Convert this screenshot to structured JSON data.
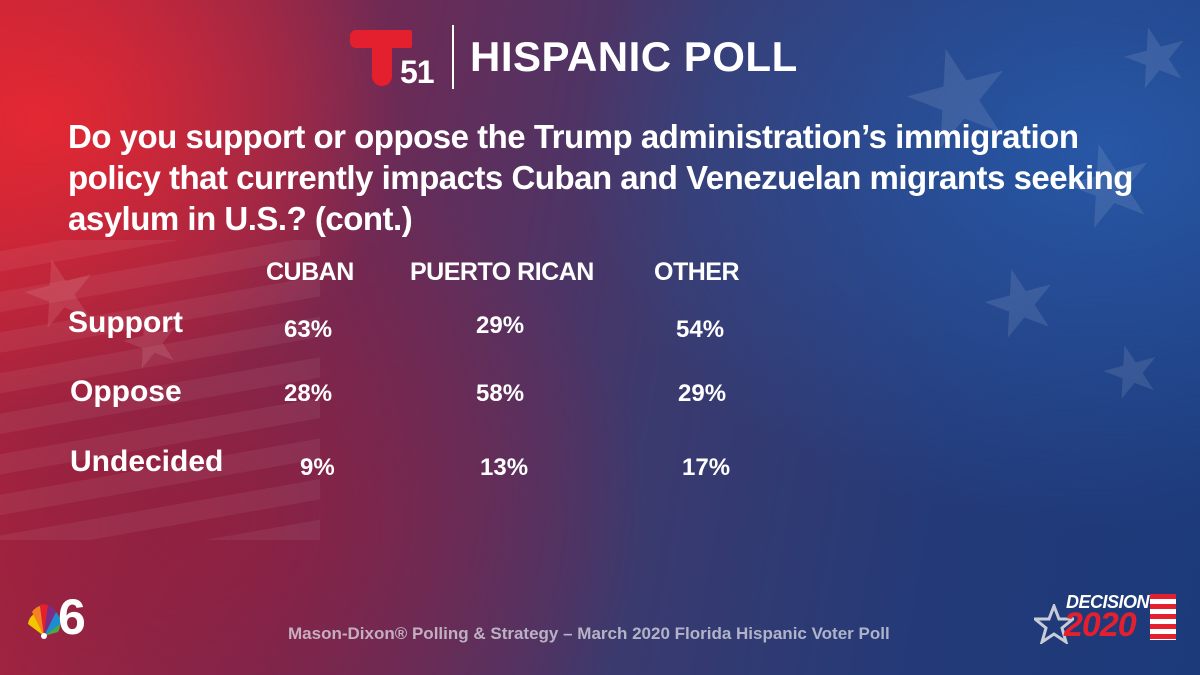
{
  "header": {
    "channel_number": "51",
    "title": "HISPANIC POLL"
  },
  "question": "Do you support or oppose the Trump administration’s immigration policy that currently impacts Cuban and Venezuelan migrants seeking asylum in U.S.?  (cont.)",
  "table": {
    "columns": [
      "CUBAN",
      "PUERTO RICAN",
      "OTHER"
    ],
    "rows": [
      {
        "label": "Support",
        "values": [
          "63%",
          "29%",
          "54%"
        ]
      },
      {
        "label": "Oppose",
        "values": [
          "28%",
          "58%",
          "29%"
        ]
      },
      {
        "label": "Undecided",
        "values": [
          "9%",
          "13%",
          "17%"
        ]
      }
    ]
  },
  "footer": {
    "source": "Mason-Dixon® Polling & Strategy – March 2020 Florida Hispanic Voter Poll"
  },
  "logos": {
    "nbc_channel": "6",
    "decision_word": "DECISION",
    "decision_year": "2020"
  },
  "colors": {
    "telemundo_red": "#e4202e",
    "text": "#ffffff"
  }
}
